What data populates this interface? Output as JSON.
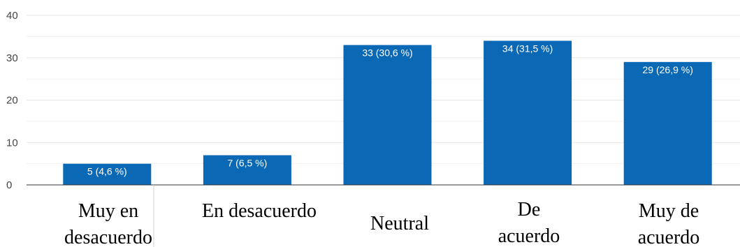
{
  "chart_data": {
    "type": "bar",
    "categories": [
      "Muy en desacuerdo",
      "En desacuerdo",
      "Neutral",
      "De acuerdo",
      "Muy de acuerdo"
    ],
    "values": [
      5,
      7,
      33,
      34,
      29
    ],
    "data_labels": [
      "5 (4,6 %)",
      "7 (6,5 %)",
      "33 (30,6 %)",
      "34 (31,5 %)",
      "29 (26,9 %)"
    ],
    "yticks": [
      "0",
      "10",
      "20",
      "30",
      "40"
    ],
    "ylim": [
      0,
      40
    ],
    "grid": true,
    "legend": "none",
    "colors": {
      "bar": "#0b68b5",
      "grid": "#e6e6e6",
      "axis": "#333333"
    }
  }
}
